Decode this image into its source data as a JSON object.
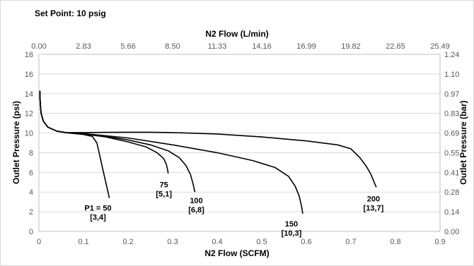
{
  "chart_data": {
    "type": "line",
    "title": "Set Point: 10 psig",
    "xlabel": "N2 Flow (SCFM)",
    "x2label": "N2 Flow (L/min)",
    "ylabel": "Outlet Pressure (psi)",
    "y2label": "Outlet Pressure (bar)",
    "xlim": [
      0,
      0.9
    ],
    "ylim": [
      0,
      18
    ],
    "x_ticks": [
      "0",
      "0.1",
      "0.2",
      "0.3",
      "0.4",
      "0.5",
      "0.6",
      "0.7",
      "0.8",
      "0.9"
    ],
    "y_ticks": [
      "0",
      "2",
      "4",
      "6",
      "8",
      "10",
      "12",
      "14",
      "16",
      "18"
    ],
    "x2_ticks": [
      "0.00",
      "2.83",
      "5.66",
      "8.50",
      "11.33",
      "14.16",
      "16.99",
      "19.82",
      "22.65",
      "25.49"
    ],
    "y2_ticks": [
      "0.00",
      "0.14",
      "0.28",
      "0.41",
      "0.55",
      "0.69",
      "0.83",
      "0.97",
      "1.10",
      "1.24"
    ],
    "grid": "horizontal",
    "line_color": "#000000",
    "series": [
      {
        "label_lines": [
          "P1 = 50",
          "[3,4]"
        ],
        "x": [
          0.002,
          0.003,
          0.005,
          0.01,
          0.02,
          0.04,
          0.06,
          0.08,
          0.1,
          0.12,
          0.13,
          0.135,
          0.14,
          0.145,
          0.15,
          0.155,
          0.158
        ],
        "y": [
          14.3,
          13.0,
          12.0,
          11.2,
          10.6,
          10.2,
          10.05,
          9.95,
          9.85,
          9.65,
          9.0,
          8.0,
          7.0,
          6.0,
          5.0,
          4.0,
          3.4
        ]
      },
      {
        "label_lines": [
          "75",
          "[5,1]"
        ],
        "x": [
          0.002,
          0.003,
          0.005,
          0.01,
          0.02,
          0.04,
          0.06,
          0.1,
          0.15,
          0.2,
          0.24,
          0.265,
          0.28,
          0.286,
          0.289,
          0.29
        ],
        "y": [
          14.3,
          13.0,
          12.0,
          11.2,
          10.6,
          10.2,
          10.05,
          9.9,
          9.6,
          9.1,
          8.6,
          8.0,
          7.4,
          6.8,
          6.2,
          5.9
        ]
      },
      {
        "label_lines": [
          "100",
          "[6,8]"
        ],
        "x": [
          0.002,
          0.003,
          0.005,
          0.01,
          0.02,
          0.04,
          0.06,
          0.1,
          0.15,
          0.2,
          0.25,
          0.29,
          0.315,
          0.33,
          0.34,
          0.346,
          0.35
        ],
        "y": [
          14.3,
          13.0,
          12.0,
          11.2,
          10.6,
          10.2,
          10.05,
          9.9,
          9.65,
          9.3,
          8.8,
          8.2,
          7.5,
          6.7,
          5.8,
          4.8,
          4.0
        ]
      },
      {
        "label_lines": [
          "150",
          "[10,3]"
        ],
        "x": [
          0.002,
          0.003,
          0.005,
          0.01,
          0.02,
          0.04,
          0.06,
          0.1,
          0.2,
          0.3,
          0.4,
          0.48,
          0.53,
          0.56,
          0.575,
          0.584,
          0.589,
          0.592
        ],
        "y": [
          14.3,
          13.0,
          12.0,
          11.2,
          10.6,
          10.2,
          10.05,
          9.95,
          9.5,
          8.8,
          8.0,
          7.2,
          6.5,
          5.6,
          4.6,
          3.6,
          2.6,
          1.8
        ]
      },
      {
        "label_lines": [
          "200",
          "[13,7]"
        ],
        "x": [
          0.002,
          0.003,
          0.005,
          0.01,
          0.02,
          0.04,
          0.06,
          0.1,
          0.15,
          0.2,
          0.25,
          0.3,
          0.4,
          0.5,
          0.6,
          0.67,
          0.7,
          0.72,
          0.735,
          0.745,
          0.752,
          0.757
        ],
        "y": [
          14.3,
          13.0,
          12.0,
          11.2,
          10.6,
          10.2,
          10.05,
          10.05,
          10.07,
          10.08,
          10.08,
          10.05,
          9.9,
          9.6,
          9.2,
          8.8,
          8.4,
          7.5,
          6.6,
          5.8,
          5.0,
          4.5
        ]
      }
    ]
  }
}
